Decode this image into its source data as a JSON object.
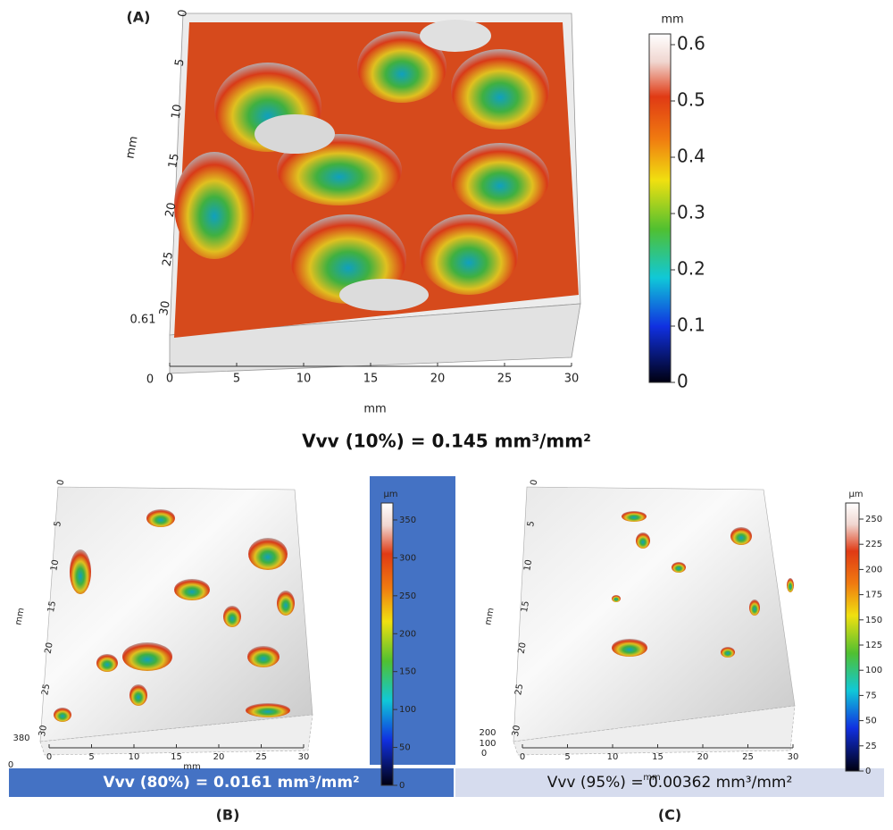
{
  "panels": [
    {
      "label": "(A)",
      "x_axis_title": "mm",
      "y_axis_title": "mm",
      "xticks": [
        "0",
        "5",
        "10",
        "15",
        "20",
        "25",
        "30"
      ],
      "yticks": [
        "0",
        "5",
        "10",
        "15",
        "20",
        "25",
        "30"
      ],
      "zticks": [
        "0.61",
        "0"
      ],
      "colorbar": {
        "unit": "mm",
        "ticks": [
          "0.6",
          "0.5",
          "0.4",
          "0.3",
          "0.2",
          "0.1",
          "0"
        ]
      },
      "caption": "Vvv (10%) = 0.145 mm³/mm²"
    },
    {
      "label": "(B)",
      "x_axis_title": "mm",
      "y_axis_title": "mm",
      "xticks": [
        "0",
        "5",
        "10",
        "15",
        "20",
        "25",
        "30"
      ],
      "yticks": [
        "0",
        "5",
        "10",
        "15",
        "20",
        "25",
        "30"
      ],
      "zticks": [
        "380",
        "0"
      ],
      "colorbar": {
        "unit": "µm",
        "ticks": [
          "350",
          "300",
          "250",
          "200",
          "150",
          "100",
          "50",
          "0"
        ]
      },
      "caption": "Vvv (80%) = 0.0161 mm³/mm²"
    },
    {
      "label": "(C)",
      "x_axis_title": "mm",
      "y_axis_title": "mm",
      "xticks": [
        "0",
        "5",
        "10",
        "15",
        "20",
        "25",
        "30"
      ],
      "yticks": [
        "0",
        "5",
        "10",
        "15",
        "20",
        "25",
        "30"
      ],
      "zticks": [
        "200",
        "100",
        "0"
      ],
      "colorbar": {
        "unit": "µm",
        "ticks": [
          "250",
          "225",
          "200",
          "175",
          "150",
          "125",
          "100",
          "75",
          "50",
          "25",
          "0"
        ]
      },
      "caption": "Vvv (95%) = 0.00362 mm³/mm²"
    }
  ]
}
